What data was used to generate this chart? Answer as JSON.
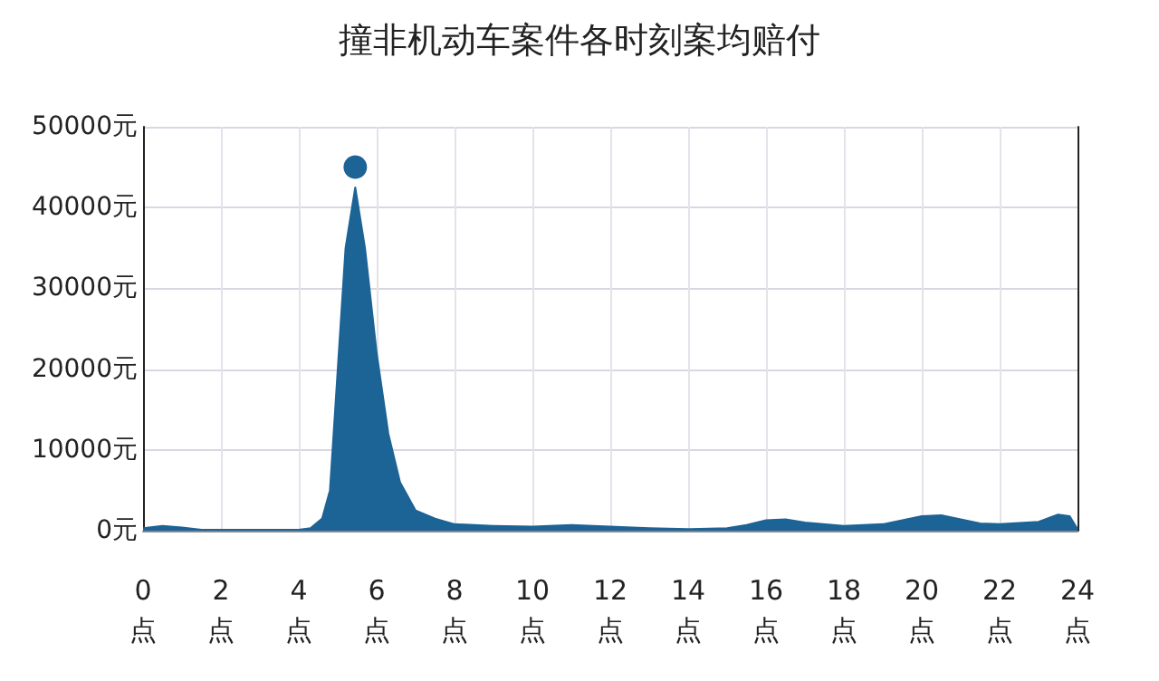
{
  "chart_data": {
    "type": "area",
    "title": "撞非机动车案件各时刻案均赔付",
    "series": [
      {
        "color": "#1c6396",
        "x": [
          0,
          0.5,
          1,
          1.5,
          2,
          3,
          4,
          4.3,
          4.6,
          4.8,
          5,
          5.2,
          5.45,
          5.7,
          6,
          6.3,
          6.6,
          7,
          7.5,
          8,
          9,
          10,
          11,
          12,
          13,
          14,
          15,
          15.5,
          16,
          16.5,
          17,
          18,
          19,
          19.5,
          20,
          20.5,
          21,
          21.5,
          22,
          23,
          23.5,
          23.8,
          24
        ],
        "values": [
          300,
          600,
          400,
          100,
          100,
          100,
          100,
          300,
          1500,
          5000,
          20000,
          35000,
          42500,
          35000,
          22000,
          12000,
          6000,
          2500,
          1500,
          800,
          600,
          500,
          700,
          500,
          300,
          200,
          300,
          700,
          1300,
          1400,
          1000,
          600,
          800,
          1300,
          1800,
          1900,
          1400,
          900,
          800,
          1100,
          2000,
          1800,
          200
        ]
      },
      {
        "type": "scatter",
        "color": "#1c6396",
        "marker": "circle",
        "x": [
          5.45
        ],
        "values": [
          45000
        ]
      }
    ],
    "xlim": [
      0,
      24
    ],
    "xticks": [
      {
        "value": 0,
        "label": "0\n点"
      },
      {
        "value": 2,
        "label": "2\n点"
      },
      {
        "value": 4,
        "label": "4\n点"
      },
      {
        "value": 6,
        "label": "6\n点"
      },
      {
        "value": 8,
        "label": "8\n点"
      },
      {
        "value": 10,
        "label": "10\n点"
      },
      {
        "value": 12,
        "label": "12\n点"
      },
      {
        "value": 14,
        "label": "14\n点"
      },
      {
        "value": 16,
        "label": "16\n点"
      },
      {
        "value": 18,
        "label": "18\n点"
      },
      {
        "value": 20,
        "label": "20\n点"
      },
      {
        "value": 22,
        "label": "22\n点"
      },
      {
        "value": 24,
        "label": "24\n点"
      }
    ],
    "ylim": [
      0,
      50000
    ],
    "yticks": [
      {
        "value": 0,
        "label": "0元"
      },
      {
        "value": 10000,
        "label": "10000元"
      },
      {
        "value": 20000,
        "label": "20000元"
      },
      {
        "value": 30000,
        "label": "30000元"
      },
      {
        "value": 40000,
        "label": "40000元"
      },
      {
        "value": 50000,
        "label": "50000元"
      }
    ],
    "grid": true
  }
}
